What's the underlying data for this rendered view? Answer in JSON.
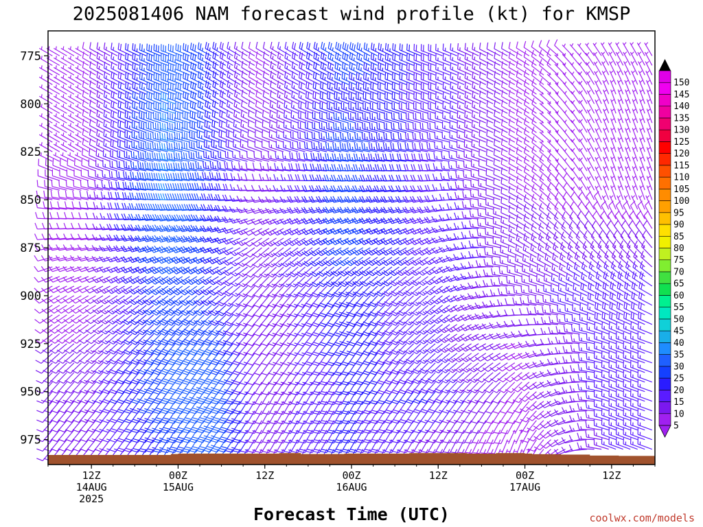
{
  "chart_data": {
    "type": "wind-barb-time-height",
    "title": "2025081406 NAM forecast wind profile (kt) for KMSP",
    "xlabel": "Forecast Time (UTC)",
    "units": "kt",
    "y_axis": {
      "quantity": "pressure (hPa)",
      "ticks": [
        775,
        800,
        825,
        850,
        875,
        900,
        925,
        950,
        975
      ],
      "range": [
        762,
        988
      ],
      "inverted": true
    },
    "x_axis": {
      "range_hours": [
        0,
        84
      ],
      "tick_labels": [
        {
          "hour": 6,
          "lines": [
            "12Z",
            "14AUG",
            "2025"
          ]
        },
        {
          "hour": 18,
          "lines": [
            "00Z",
            "15AUG"
          ]
        },
        {
          "hour": 30,
          "lines": [
            "12Z"
          ]
        },
        {
          "hour": 42,
          "lines": [
            "00Z",
            "16AUG"
          ]
        },
        {
          "hour": 54,
          "lines": [
            "12Z"
          ]
        },
        {
          "hour": 66,
          "lines": [
            "00Z",
            "17AUG"
          ]
        },
        {
          "hour": 78,
          "lines": [
            "12Z"
          ]
        }
      ]
    },
    "colorbar": {
      "ticks": [
        5,
        10,
        15,
        20,
        25,
        30,
        35,
        40,
        45,
        50,
        55,
        60,
        65,
        70,
        75,
        80,
        85,
        90,
        95,
        100,
        105,
        110,
        115,
        120,
        125,
        130,
        135,
        140,
        145,
        150
      ],
      "colors": [
        "#a020f0",
        "#7b18f0",
        "#5a1cff",
        "#2a1cff",
        "#1440ff",
        "#1f60ff",
        "#1e8cff",
        "#19aee8",
        "#10d0d8",
        "#00e8c0",
        "#00f090",
        "#10e050",
        "#40e040",
        "#80ee30",
        "#c0f020",
        "#f0f000",
        "#ffe000",
        "#ffc000",
        "#ffa000",
        "#ff8c00",
        "#ff7000",
        "#ff5000",
        "#ff2800",
        "#ff0000",
        "#f00040",
        "#f00070",
        "#f000a0",
        "#f000c8",
        "#f000f0",
        "#e000e8"
      ]
    },
    "terrain_color": "#a0522d",
    "surface_pressure_hpa": [
      983,
      983,
      983,
      983,
      983,
      983,
      983,
      983,
      983,
      983,
      983,
      983,
      983,
      983,
      983,
      983,
      983,
      982.5,
      982.3,
      982.3,
      982.3,
      982.3,
      982.3,
      982.3,
      982.3,
      982.3,
      982.3,
      982.3,
      982.3,
      982.3,
      982.3,
      982.3,
      982,
      982,
      982,
      982.5,
      982.5,
      982.5,
      982.5,
      982.5,
      982.5,
      982.3,
      982.3,
      982.3,
      982.3,
      982.3,
      982.3,
      982.3,
      982.3,
      982.3,
      982,
      982,
      982,
      982,
      982,
      982,
      982,
      982,
      982.3,
      982.3,
      982.3,
      982.3,
      982,
      982,
      982,
      982,
      982.3,
      982.6,
      982.6,
      982.6,
      982.6,
      982.8,
      982.8,
      982.8,
      982.8,
      983.3,
      983.3,
      983.3,
      983.3,
      983.5,
      983.5,
      983.5,
      983.5,
      983.5
    ],
    "wind_field_summary": {
      "levels_hpa": [
        775,
        800,
        825,
        850,
        875,
        900,
        925,
        950,
        975
      ],
      "hours_sampled": [
        6,
        18,
        24,
        30,
        42,
        54,
        66,
        78
      ],
      "speed_kt": [
        [
          7,
          7,
          7,
          9,
          8,
          8,
          10,
          13,
          10
        ],
        [
          33,
          36,
          36,
          36,
          33,
          29,
          30,
          32,
          27
        ],
        [
          24,
          22,
          24,
          24,
          24,
          23,
          30,
          34,
          34
        ],
        [
          9,
          9,
          10,
          11,
          11,
          10,
          10,
          11,
          12
        ],
        [
          29,
          24,
          28,
          27,
          27,
          23,
          23,
          20,
          22
        ],
        [
          18,
          18,
          18,
          18,
          18,
          16,
          16,
          20,
          12
        ],
        [
          9,
          8,
          8,
          10,
          13,
          13,
          9,
          8,
          6
        ],
        [
          6,
          6,
          6,
          6,
          12,
          19,
          17,
          17,
          15
        ]
      ],
      "direction_deg_from": [
        [
          300,
          300,
          300,
          280,
          260,
          240,
          230,
          220,
          220
        ],
        [
          290,
          290,
          280,
          270,
          250,
          230,
          220,
          215,
          210
        ],
        [
          300,
          300,
          290,
          270,
          250,
          230,
          220,
          215,
          215
        ],
        [
          300,
          300,
          290,
          260,
          230,
          220,
          220,
          210,
          210
        ],
        [
          300,
          290,
          280,
          260,
          240,
          220,
          215,
          210,
          210
        ],
        [
          290,
          290,
          280,
          260,
          240,
          230,
          230,
          220,
          210
        ],
        [
          300,
          300,
          300,
          300,
          300,
          280,
          250,
          220,
          200
        ],
        [
          330,
          340,
          340,
          340,
          320,
          300,
          290,
          290,
          290
        ]
      ]
    },
    "credit": "coolwx.com/models"
  }
}
